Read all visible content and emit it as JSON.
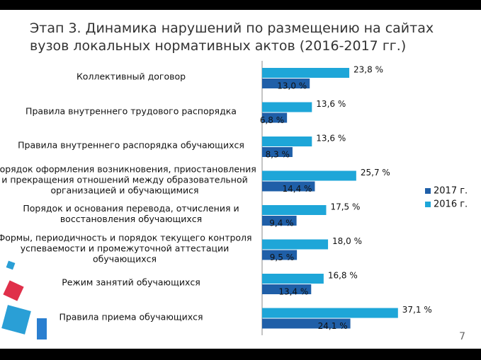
{
  "title": "Этап 3. Динамика нарушений по размещению на сайтах вузов локальных нормативных актов (2016-2017 гг.)",
  "page_number": "7",
  "chart_data": {
    "type": "barh",
    "categories": [
      "Коллективный договор",
      "Правила внутреннего трудового распорядка",
      "Правила внутреннего распорядка обучающихся",
      "Порядок оформления возникновения, приостановления и прекращения отношений между образовательной организацией и обучающимися",
      "Порядок и основания перевода, отчисления и восстановления обучающихся",
      "Формы, периодичность и порядок текущего контроля успеваемости и промежуточной аттестации обучающихся",
      "Режим занятий обучающихся",
      "Правила приема обучающихся"
    ],
    "series": [
      {
        "name": "2017 г.",
        "color": "#1f5fa8",
        "values": [
          13.0,
          6.8,
          8.3,
          14.4,
          9.4,
          9.5,
          13.4,
          24.1
        ],
        "value_labels": [
          "13,0 %",
          "6,8 %",
          "8,3 %",
          "14,4 %",
          "9,4 %",
          "9,5 %",
          "13,4 %",
          "24,1 %"
        ]
      },
      {
        "name": "2016 г.",
        "color": "#1ea6d8",
        "values": [
          23.8,
          13.6,
          13.6,
          25.7,
          17.5,
          18.0,
          16.8,
          37.1
        ],
        "value_labels": [
          "23,8 %",
          "13,6 %",
          "13,6 %",
          "25,7 %",
          "17,5 %",
          "18,0 %",
          "16,8 %",
          "37,1 %"
        ]
      }
    ],
    "legend": "right"
  }
}
